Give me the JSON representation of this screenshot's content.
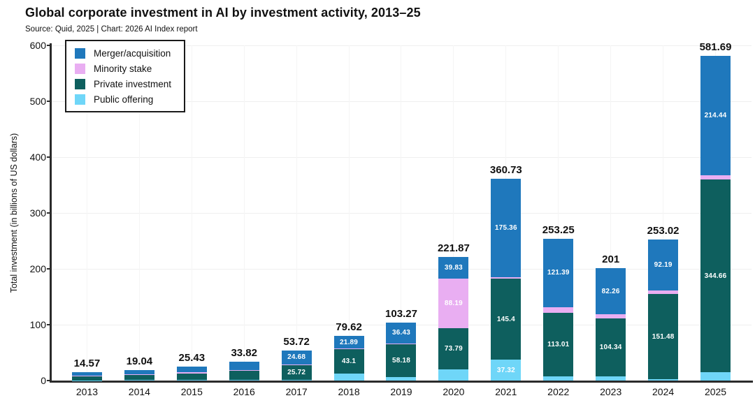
{
  "header": {
    "title": "Global corporate investment in AI by investment activity, 2013–25",
    "subtitle": "Source: Quid, 2025 | Chart: 2026 AI Index report"
  },
  "colors": {
    "merger_acquisition": "#1f78bc",
    "minority_stake": "#e9aef2",
    "private_investment": "#0e5f5e",
    "public_offering": "#6fd6f8",
    "spine": "#2b2b2b",
    "grid": "#efefef",
    "text": "#111111"
  },
  "legend": {
    "items": [
      {
        "label": "Merger/acquisition",
        "color": "#1f78bc"
      },
      {
        "label": "Minority stake",
        "color": "#e9aef2"
      },
      {
        "label": "Private investment",
        "color": "#0e5f5e"
      },
      {
        "label": "Public offering",
        "color": "#6fd6f8"
      }
    ]
  },
  "chart_data": {
    "type": "bar",
    "stacked": true,
    "title": "Global corporate investment in AI by investment activity, 2013–25",
    "xlabel": "",
    "ylabel": "Total investment (in billions of US dollars)",
    "ylim": [
      0,
      600
    ],
    "yticks": [
      0,
      100,
      200,
      300,
      400,
      500,
      600
    ],
    "grid": true,
    "legend_position": "top-left",
    "categories": [
      "2013",
      "2014",
      "2015",
      "2016",
      "2017",
      "2018",
      "2019",
      "2020",
      "2021",
      "2022",
      "2023",
      "2024",
      "2025"
    ],
    "totals": [
      "14.57",
      "19.04",
      "25.43",
      "33.82",
      "53.72",
      "79.62",
      "103.27",
      "221.87",
      "360.73",
      "253.25",
      "201",
      "253.02",
      "581.69"
    ],
    "series": [
      {
        "name": "Public offering",
        "color": "#6fd6f8",
        "values": [
          0.6,
          0.8,
          0.8,
          1.0,
          1.42,
          12.93,
          6.56,
          20.06,
          37.32,
          7.85,
          7.0,
          3.0,
          15.0
        ],
        "labels": [
          null,
          null,
          null,
          null,
          null,
          null,
          null,
          null,
          "37.32",
          null,
          null,
          null,
          null
        ]
      },
      {
        "name": "Private investment",
        "color": "#0e5f5e",
        "values": [
          6.5,
          9.0,
          12.0,
          16.0,
          25.72,
          43.1,
          58.18,
          73.79,
          145.4,
          113.01,
          104.34,
          151.48,
          344.66
        ],
        "labels": [
          null,
          null,
          null,
          null,
          "25.72",
          "43.1",
          "58.18",
          "73.79",
          "145.4",
          "113.01",
          "104.34",
          "151.48",
          "344.66"
        ]
      },
      {
        "name": "Minority stake",
        "color": "#e9aef2",
        "values": [
          1.2,
          1.2,
          2.2,
          2.3,
          1.9,
          1.7,
          2.1,
          88.19,
          2.65,
          11.0,
          7.4,
          6.35,
          7.59
        ],
        "labels": [
          null,
          null,
          null,
          null,
          null,
          null,
          null,
          "88.19",
          null,
          null,
          null,
          null,
          null
        ]
      },
      {
        "name": "Merger/acquisition",
        "color": "#1f78bc",
        "values": [
          6.27,
          8.04,
          10.43,
          14.52,
          24.68,
          21.89,
          36.43,
          39.83,
          175.36,
          121.39,
          82.26,
          92.19,
          214.44
        ],
        "labels": [
          null,
          null,
          null,
          null,
          "24.68",
          "21.89",
          "36.43",
          "39.83",
          "175.36",
          "121.39",
          "82.26",
          "92.19",
          "214.44"
        ]
      }
    ]
  }
}
